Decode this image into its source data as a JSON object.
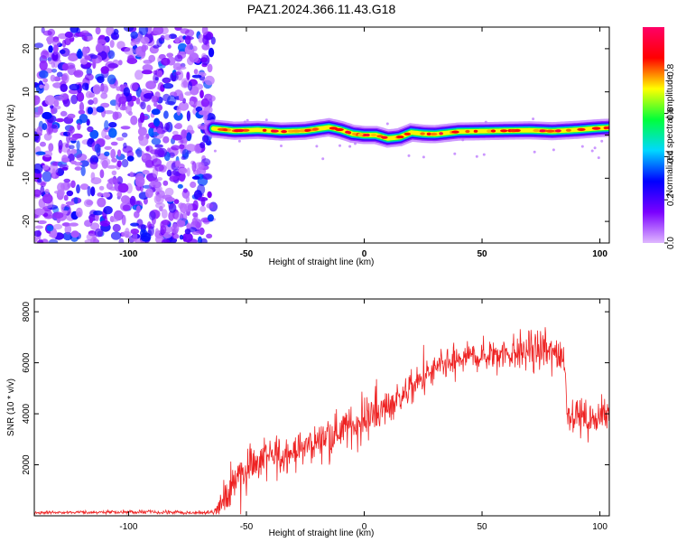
{
  "figure": {
    "title": "PAZ1.2024.366.11.43.G18"
  },
  "chart_data": [
    {
      "type": "heatmap",
      "xlabel": "Height of straight line (km)",
      "ylabel": "Frequency (Hz)",
      "xlim": [
        -140,
        104
      ],
      "ylim": [
        -25,
        25
      ],
      "x_ticks": [
        -100,
        -50,
        0,
        50,
        100
      ],
      "y_ticks": [
        -20,
        -10,
        0,
        10,
        20
      ],
      "grid": false,
      "noise_region_km": [
        -140,
        -63
      ],
      "signal_start_km": -64,
      "noise_amplitude_range": [
        0.05,
        0.35
      ],
      "signal_peak_amplitude": 0.95,
      "signal_ridge": {
        "x": [
          -64,
          -55,
          -45,
          -35,
          -25,
          -15,
          -10,
          -5,
          0,
          5,
          10,
          15,
          20,
          25,
          30,
          40,
          50,
          60,
          70,
          80,
          90,
          100,
          104
        ],
        "y": [
          1.5,
          1.0,
          1.2,
          0.8,
          1.0,
          1.8,
          1.2,
          0.3,
          0.0,
          0.0,
          -0.8,
          -0.5,
          0.6,
          0.3,
          0.2,
          0.8,
          0.9,
          1.0,
          1.1,
          0.9,
          1.2,
          1.6,
          1.7
        ]
      },
      "colorbar": {
        "label": "Normalized spectral amplitude",
        "range": [
          0,
          1
        ],
        "ticks": [
          0.0,
          0.2,
          0.4,
          0.6,
          0.8
        ],
        "tick_labels": [
          "0.0",
          "0.2",
          "0.4",
          "0.6",
          "0.8"
        ],
        "colormap": [
          "#e0b8ff",
          "#7a00ff",
          "#0000ff",
          "#00d8ff",
          "#00ff3a",
          "#ffff00",
          "#ff0000",
          "#ff0066"
        ]
      }
    },
    {
      "type": "line",
      "xlabel": "Height of straight line (km)",
      "ylabel": "SNR (10 * v/v)",
      "xlim": [
        -140,
        104
      ],
      "ylim": [
        0,
        8500
      ],
      "x_ticks": [
        -100,
        -50,
        0,
        50,
        100
      ],
      "y_ticks": [
        2000,
        4000,
        6000,
        8000
      ],
      "grid": false,
      "series": [
        {
          "color": "#ee2222",
          "x": [
            -140,
            -120,
            -100,
            -80,
            -64,
            -60,
            -55,
            -50,
            -45,
            -40,
            -30,
            -20,
            -10,
            0,
            10,
            20,
            30,
            40,
            50,
            60,
            70,
            80,
            85,
            86,
            90,
            95,
            100,
            104
          ],
          "mean": [
            120,
            130,
            150,
            130,
            120,
            400,
            1500,
            1900,
            2100,
            2300,
            2500,
            2900,
            3400,
            3700,
            4300,
            5000,
            5700,
            6100,
            6300,
            6400,
            6500,
            6400,
            6300,
            4100,
            4000,
            3800,
            3900,
            3900
          ],
          "noise": [
            50,
            50,
            60,
            60,
            60,
            600,
            900,
            850,
            800,
            700,
            550,
            550,
            600,
            600,
            550,
            520,
            500,
            500,
            500,
            550,
            650,
            700,
            600,
            500,
            500,
            550,
            550,
            550
          ]
        }
      ]
    }
  ]
}
